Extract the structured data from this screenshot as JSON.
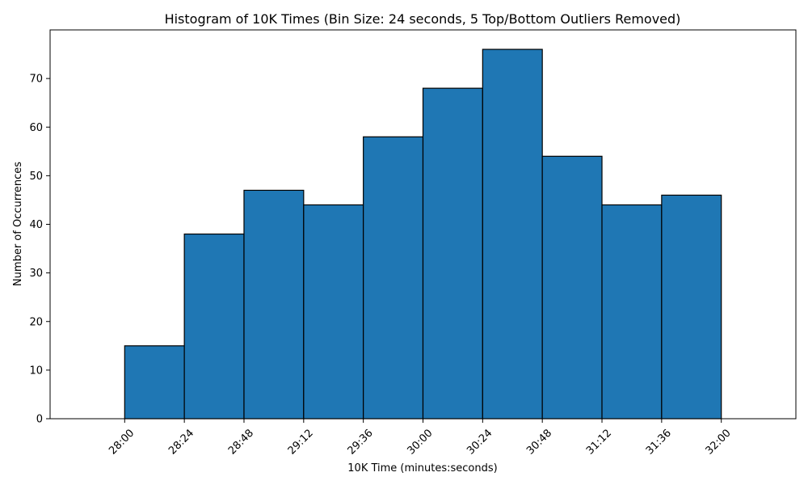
{
  "chart_data": {
    "type": "bar",
    "title": "Histogram of 10K Times (Bin Size: 24 seconds, 5 Top/Bottom Outliers Removed)",
    "xlabel": "10K Time (minutes:seconds)",
    "ylabel": "Number of Occurrences",
    "x_tick_labels": [
      "28:00",
      "28:24",
      "28:48",
      "29:12",
      "29:36",
      "30:00",
      "30:24",
      "30:48",
      "31:12",
      "31:36",
      "32:00"
    ],
    "bins": [
      {
        "start": "28:00",
        "end": "28:24",
        "count": 15
      },
      {
        "start": "28:24",
        "end": "28:48",
        "count": 38
      },
      {
        "start": "28:48",
        "end": "29:12",
        "count": 47
      },
      {
        "start": "29:12",
        "end": "29:36",
        "count": 44
      },
      {
        "start": "29:36",
        "end": "30:00",
        "count": 58
      },
      {
        "start": "30:00",
        "end": "30:24",
        "count": 68
      },
      {
        "start": "30:24",
        "end": "30:48",
        "count": 76
      },
      {
        "start": "30:48",
        "end": "31:12",
        "count": 54
      },
      {
        "start": "31:12",
        "end": "31:36",
        "count": 44
      },
      {
        "start": "31:36",
        "end": "32:00",
        "count": 46
      }
    ],
    "y_ticks": [
      0,
      10,
      20,
      30,
      40,
      50,
      60,
      70
    ],
    "xlim": [
      "27:30",
      "32:30"
    ],
    "ylim": [
      0,
      80
    ],
    "grid": false,
    "bar_color": "#1f77b4",
    "edge_color": "#000000"
  }
}
